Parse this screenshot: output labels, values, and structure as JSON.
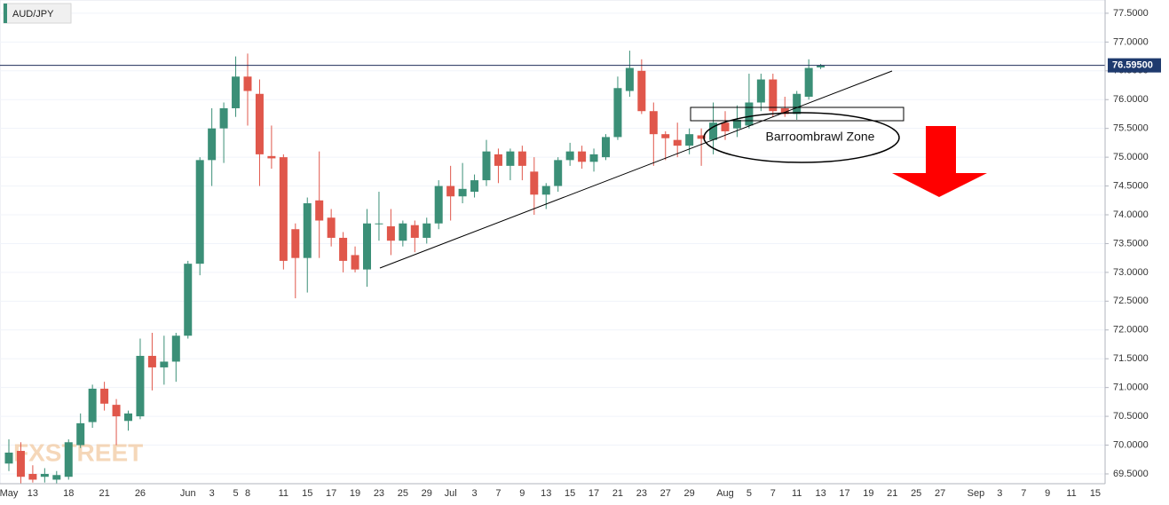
{
  "chart_data": {
    "type": "candlestick",
    "title": "AUD/JPY",
    "watermark": "FXSTREET",
    "annotation": "Barroombrawl Zone",
    "categories": [
      "May",
      null,
      "13",
      null,
      null,
      "18",
      null,
      null,
      "21",
      null,
      null,
      "26",
      null,
      null,
      null,
      "Jun",
      null,
      "3",
      null,
      "5",
      "8",
      null,
      null,
      "11",
      null,
      "15",
      null,
      "17",
      null,
      "19",
      null,
      "23",
      null,
      "25",
      null,
      "29",
      null,
      "Jul",
      null,
      "3",
      null,
      "7",
      null,
      "9",
      null,
      "13",
      null,
      "15",
      null,
      "17",
      null,
      "21",
      null,
      "23",
      null,
      "27",
      null,
      "29",
      null,
      null,
      "Aug",
      null,
      "5",
      null,
      "7",
      null,
      "11",
      null,
      "13",
      null,
      "17",
      null,
      "19",
      null,
      "21",
      null,
      "25",
      null,
      "27",
      null,
      null,
      "Sep",
      null,
      "3",
      null,
      "7",
      null,
      "9",
      null,
      "11",
      null,
      "15"
    ],
    "open": [
      69.68,
      69.9,
      69.5,
      69.45,
      69.4,
      69.45,
      70.0,
      70.4,
      70.98,
      70.7,
      70.42,
      70.5,
      71.55,
      71.35,
      71.45,
      71.9,
      73.15,
      74.95,
      75.5,
      75.85,
      76.4,
      76.1,
      75.02,
      75.0,
      73.75,
      73.25,
      74.25,
      73.95,
      73.6,
      73.3,
      73.05,
      73.85,
      73.8,
      73.55,
      73.82,
      73.6,
      73.85,
      74.5,
      74.32,
      74.4,
      74.6,
      75.05,
      74.85,
      75.1,
      74.75,
      74.35,
      74.5,
      74.95,
      75.1,
      74.92,
      75.0,
      75.35,
      76.15,
      76.5,
      75.8,
      75.4,
      75.3,
      75.2,
      75.38,
      75.3,
      75.6,
      75.5,
      75.55,
      75.95,
      76.35,
      75.85,
      75.75,
      76.05,
      76.56,
      null,
      null,
      null,
      null,
      null,
      null,
      null,
      null,
      null,
      null,
      null,
      null,
      null,
      null,
      null,
      null,
      null,
      null,
      null,
      null,
      null,
      null,
      null
    ],
    "high": [
      70.1,
      70.05,
      69.65,
      69.6,
      69.55,
      70.1,
      70.55,
      71.05,
      71.1,
      70.8,
      70.6,
      71.85,
      71.95,
      71.9,
      71.95,
      73.2,
      75.0,
      75.85,
      75.95,
      76.75,
      76.8,
      76.35,
      75.55,
      75.05,
      73.85,
      74.3,
      75.1,
      74.1,
      73.7,
      73.45,
      74.1,
      74.4,
      74.1,
      73.9,
      73.9,
      73.95,
      74.6,
      74.85,
      74.9,
      74.7,
      75.3,
      75.15,
      75.15,
      75.2,
      75.0,
      74.55,
      75.0,
      75.25,
      75.2,
      75.15,
      75.4,
      76.4,
      76.85,
      76.7,
      75.95,
      75.45,
      75.6,
      75.5,
      75.5,
      75.95,
      75.8,
      75.9,
      76.45,
      76.45,
      76.45,
      76.05,
      76.15,
      76.7,
      76.62,
      null,
      null,
      null,
      null,
      null,
      null,
      null,
      null,
      null,
      null,
      null,
      null,
      null,
      null,
      null,
      null,
      null,
      null,
      null,
      null,
      null,
      null,
      null
    ],
    "low": [
      69.55,
      69.3,
      69.35,
      69.35,
      69.3,
      69.4,
      69.95,
      70.3,
      70.6,
      70.0,
      70.25,
      70.45,
      70.95,
      71.05,
      71.1,
      71.85,
      72.95,
      74.5,
      74.9,
      75.7,
      75.55,
      74.5,
      74.8,
      73.05,
      72.55,
      72.65,
      73.25,
      73.45,
      73.0,
      73.0,
      72.75,
      73.55,
      73.3,
      73.45,
      73.35,
      73.5,
      73.75,
      73.9,
      74.2,
      74.3,
      74.5,
      74.55,
      74.6,
      74.6,
      74.0,
      74.1,
      74.4,
      74.85,
      74.8,
      74.75,
      74.95,
      75.3,
      76.05,
      75.75,
      74.85,
      74.95,
      75.0,
      75.05,
      74.85,
      75.05,
      75.3,
      75.35,
      75.5,
      75.8,
      75.7,
      75.7,
      75.65,
      76.0,
      76.53,
      null,
      null,
      null,
      null,
      null,
      null,
      null,
      null,
      null,
      null,
      null,
      null,
      null,
      null,
      null,
      null,
      null,
      null,
      null,
      null,
      null,
      null,
      null
    ],
    "close": [
      69.87,
      69.45,
      69.4,
      69.5,
      69.48,
      70.05,
      70.38,
      70.98,
      70.72,
      70.5,
      70.55,
      71.55,
      71.35,
      71.45,
      71.9,
      73.15,
      74.95,
      75.5,
      75.85,
      76.4,
      76.15,
      75.05,
      74.98,
      73.2,
      73.25,
      74.2,
      73.9,
      73.6,
      73.2,
      73.05,
      73.85,
      73.85,
      73.55,
      73.85,
      73.6,
      73.85,
      74.5,
      74.32,
      74.45,
      74.6,
      75.1,
      74.85,
      75.1,
      74.85,
      74.35,
      74.5,
      74.95,
      75.1,
      74.92,
      75.05,
      75.35,
      76.2,
      76.55,
      75.8,
      75.4,
      75.33,
      75.2,
      75.4,
      75.32,
      75.6,
      75.45,
      75.65,
      75.95,
      76.35,
      75.8,
      75.75,
      76.1,
      76.55,
      76.595,
      null,
      null,
      null,
      null,
      null,
      null,
      null,
      null,
      null,
      null,
      null,
      null,
      null,
      null,
      null,
      null,
      null,
      null,
      null,
      null,
      null,
      null,
      null
    ],
    "up_color": "#3b8f77",
    "down_color": "#e0574b",
    "last_price": {
      "value": 76.595,
      "label": "76.59500"
    },
    "ylim": [
      69.33,
      77.73
    ],
    "yticks": [
      {
        "value": 69.5,
        "label": "69.5000"
      },
      {
        "value": 70,
        "label": "70.0000"
      },
      {
        "value": 70.5,
        "label": "70.5000"
      },
      {
        "value": 71,
        "label": "71.0000"
      },
      {
        "value": 71.5,
        "label": "71.5000"
      },
      {
        "value": 72,
        "label": "72.0000"
      },
      {
        "value": 72.5,
        "label": "72.5000"
      },
      {
        "value": 73,
        "label": "73.0000"
      },
      {
        "value": 73.5,
        "label": "73.5000"
      },
      {
        "value": 74,
        "label": "74.0000"
      },
      {
        "value": 74.5,
        "label": "74.5000"
      },
      {
        "value": 75,
        "label": "75.0000"
      },
      {
        "value": 75.5,
        "label": "75.5000"
      },
      {
        "value": 76,
        "label": "76.0000"
      },
      {
        "value": 76.5,
        "label": "76.5000"
      },
      {
        "value": 77,
        "label": "77.0000"
      },
      {
        "value": 77.5,
        "label": "77.5000"
      }
    ],
    "grid": true
  }
}
